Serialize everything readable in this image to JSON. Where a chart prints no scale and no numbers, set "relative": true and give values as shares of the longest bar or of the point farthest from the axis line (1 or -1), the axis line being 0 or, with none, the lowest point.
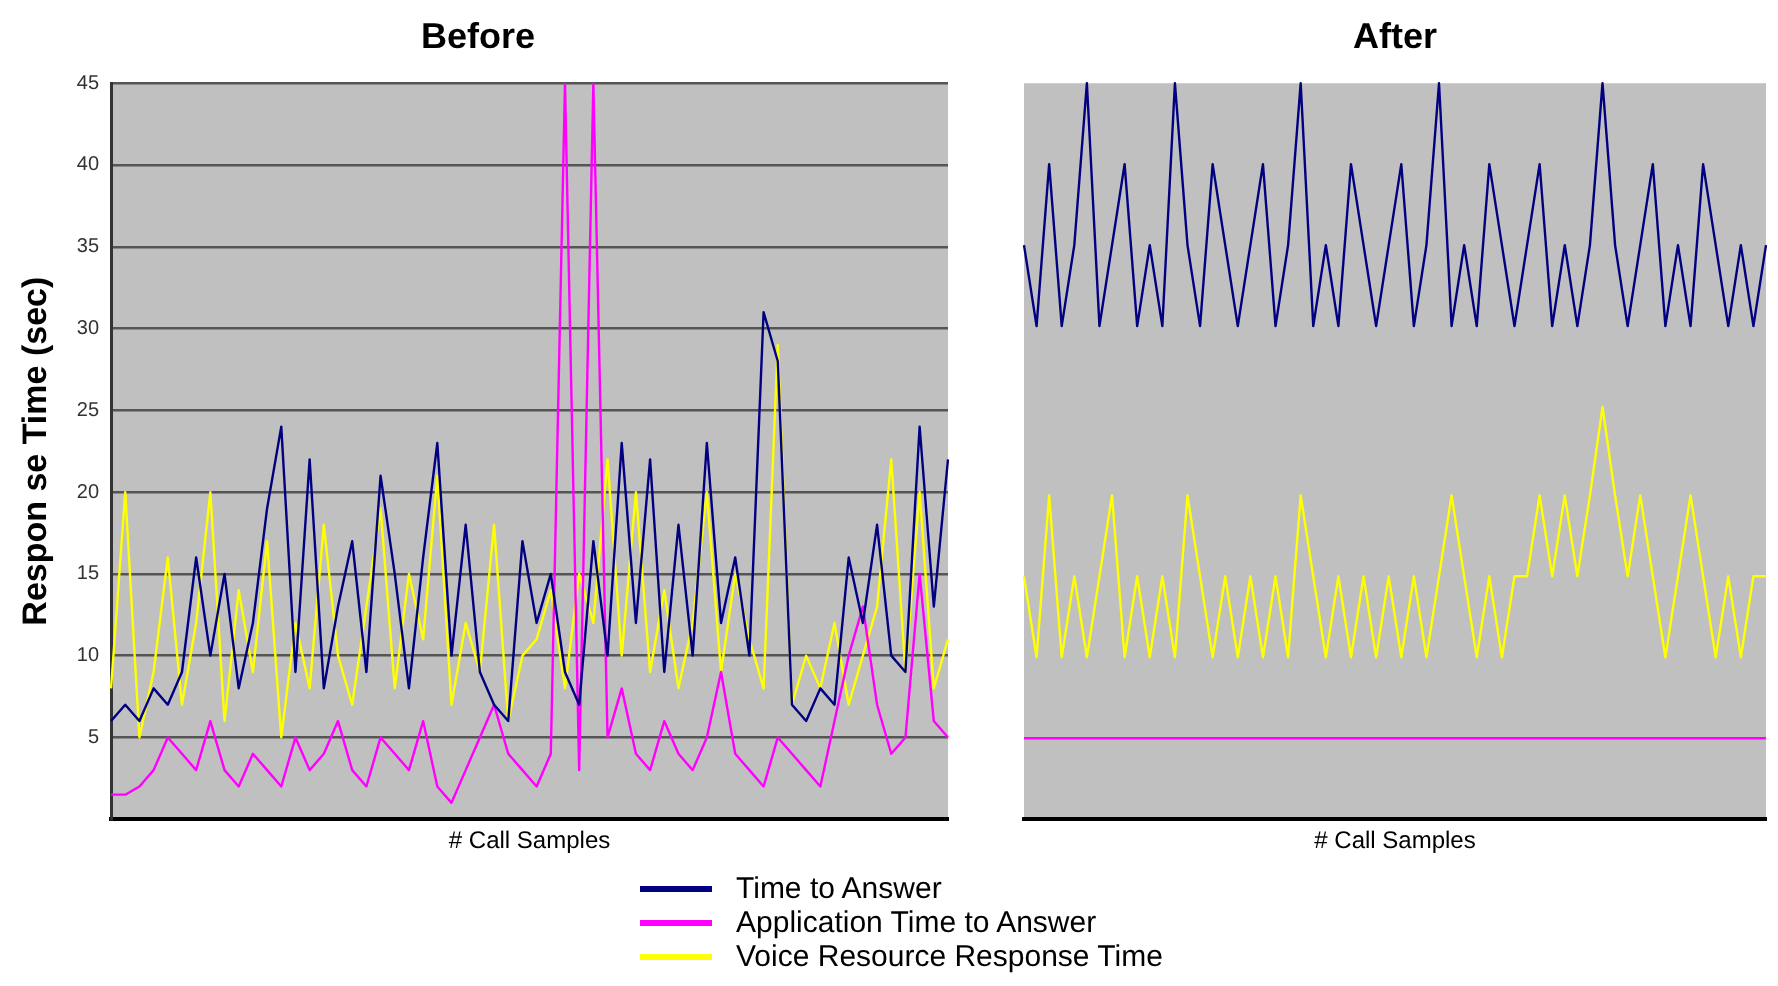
{
  "chart_data": [
    {
      "type": "line",
      "title": "Before",
      "xlabel": "# Call Samples",
      "ylabel": "Respon se Time (sec)",
      "categories": [
        null,
        null,
        null,
        null,
        null,
        null,
        null,
        null,
        null,
        null,
        null,
        null,
        null,
        null,
        null,
        null,
        null,
        null,
        null,
        null,
        null,
        null,
        null,
        null,
        null,
        null,
        null,
        null,
        null,
        null,
        null,
        null,
        null,
        null,
        null,
        null,
        null,
        null,
        null,
        null,
        null,
        null,
        null,
        null,
        null,
        null,
        null,
        null,
        null,
        null,
        null,
        null,
        null,
        null,
        null,
        null,
        null,
        null,
        null,
        null
      ],
      "series": [
        {
          "name": "Time to Answer",
          "color": "#000080",
          "values": [
            6,
            7,
            6,
            8,
            7,
            9,
            16,
            10,
            15,
            8,
            12,
            19,
            24,
            9,
            22,
            8,
            13,
            17,
            9,
            21,
            15,
            8,
            16,
            23,
            10,
            18,
            9,
            7,
            6,
            17,
            12,
            15,
            9,
            7,
            17,
            10,
            23,
            12,
            22,
            9,
            18,
            10,
            23,
            12,
            16,
            10,
            31,
            28,
            7,
            6,
            8,
            7,
            16,
            12,
            18,
            10,
            9,
            24,
            13,
            22
          ]
        },
        {
          "name": "Application Time to Answer",
          "color": "#ff00ff",
          "values": [
            1.5,
            1.5,
            2,
            3,
            5,
            4,
            3,
            6,
            3,
            2,
            4,
            3,
            2,
            5,
            3,
            4,
            6,
            3,
            2,
            5,
            4,
            3,
            6,
            2,
            1,
            3,
            5,
            7,
            4,
            3,
            2,
            4,
            45,
            3,
            45,
            5,
            8,
            4,
            3,
            6,
            4,
            3,
            5,
            9,
            4,
            3,
            2,
            5,
            4,
            3,
            2,
            6,
            10,
            13,
            7,
            4,
            5,
            15,
            6,
            5
          ]
        },
        {
          "name": "Voice Resource Response Time",
          "color": "#ffff00",
          "values": [
            8,
            20,
            5,
            9,
            16,
            7,
            12,
            20,
            6,
            14,
            9,
            17,
            5,
            12,
            8,
            18,
            10,
            7,
            13,
            19,
            8,
            15,
            11,
            21,
            7,
            12,
            9,
            18,
            6,
            10,
            11,
            14,
            8,
            15,
            12,
            22,
            10,
            20,
            9,
            14,
            8,
            12,
            20,
            9,
            15,
            11,
            8,
            29,
            7,
            10,
            8,
            12,
            7,
            10,
            13,
            22,
            9,
            20,
            8,
            11
          ]
        }
      ],
      "ylim": [
        0,
        45
      ],
      "yticks": [
        5,
        10,
        15,
        20,
        25,
        30,
        35,
        40,
        45
      ],
      "grid": "y",
      "legend": "bottom",
      "marker": "none",
      "tick_labels": "y"
    },
    {
      "type": "line",
      "title": "After",
      "xlabel": "# Call Samples",
      "relative": true,
      "categories": [
        null,
        null,
        null,
        null,
        null,
        null,
        null,
        null,
        null,
        null,
        null,
        null,
        null,
        null,
        null,
        null,
        null,
        null,
        null,
        null,
        null,
        null,
        null,
        null,
        null,
        null,
        null,
        null,
        null,
        null,
        null,
        null,
        null,
        null,
        null,
        null,
        null,
        null,
        null,
        null,
        null,
        null,
        null,
        null,
        null,
        null,
        null,
        null,
        null,
        null,
        null,
        null,
        null,
        null,
        null,
        null,
        null,
        null,
        null,
        null
      ],
      "series": [
        {
          "color": "#000080",
          "values": [
            0.78,
            0.67,
            0.89,
            0.67,
            0.78,
            1,
            0.67,
            0.78,
            0.89,
            0.67,
            0.78,
            0.67,
            1,
            0.78,
            0.67,
            0.89,
            0.78,
            0.67,
            0.78,
            0.89,
            0.67,
            0.78,
            1,
            0.67,
            0.78,
            0.67,
            0.89,
            0.78,
            0.67,
            0.78,
            0.89,
            0.67,
            0.78,
            1,
            0.67,
            0.78,
            0.67,
            0.89,
            0.78,
            0.67,
            0.78,
            0.89,
            0.67,
            0.78,
            0.67,
            0.78,
            1,
            0.78,
            0.67,
            0.78,
            0.89,
            0.67,
            0.78,
            0.67,
            0.89,
            0.78,
            0.67,
            0.78,
            0.67,
            0.78
          ]
        },
        {
          "color": "#ff00ff",
          "values": [
            0.11,
            0.11,
            0.11,
            0.11,
            0.11,
            0.11,
            0.11,
            0.11,
            0.11,
            0.11,
            0.11,
            0.11,
            0.11,
            0.11,
            0.11,
            0.11,
            0.11,
            0.11,
            0.11,
            0.11,
            0.11,
            0.11,
            0.11,
            0.11,
            0.11,
            0.11,
            0.11,
            0.11,
            0.11,
            0.11,
            0.11,
            0.11,
            0.11,
            0.11,
            0.11,
            0.11,
            0.11,
            0.11,
            0.11,
            0.11,
            0.11,
            0.11,
            0.11,
            0.11,
            0.11,
            0.11,
            0.11,
            0.11,
            0.11,
            0.11,
            0.11,
            0.11,
            0.11,
            0.11,
            0.11,
            0.11,
            0.11,
            0.11,
            0.11,
            0.11
          ]
        },
        {
          "color": "#ffff00",
          "values": [
            0.33,
            0.22,
            0.44,
            0.22,
            0.33,
            0.22,
            0.33,
            0.44,
            0.22,
            0.33,
            0.22,
            0.33,
            0.22,
            0.44,
            0.33,
            0.22,
            0.33,
            0.22,
            0.33,
            0.22,
            0.33,
            0.22,
            0.44,
            0.33,
            0.22,
            0.33,
            0.22,
            0.33,
            0.22,
            0.33,
            0.22,
            0.33,
            0.22,
            0.33,
            0.44,
            0.33,
            0.22,
            0.33,
            0.22,
            0.33,
            0.33,
            0.44,
            0.33,
            0.44,
            0.33,
            0.44,
            0.56,
            0.44,
            0.33,
            0.44,
            0.33,
            0.22,
            0.33,
            0.44,
            0.33,
            0.22,
            0.33,
            0.22,
            0.33,
            0.33
          ]
        }
      ],
      "legend": false,
      "marker": "none",
      "tick_labels": false
    }
  ]
}
